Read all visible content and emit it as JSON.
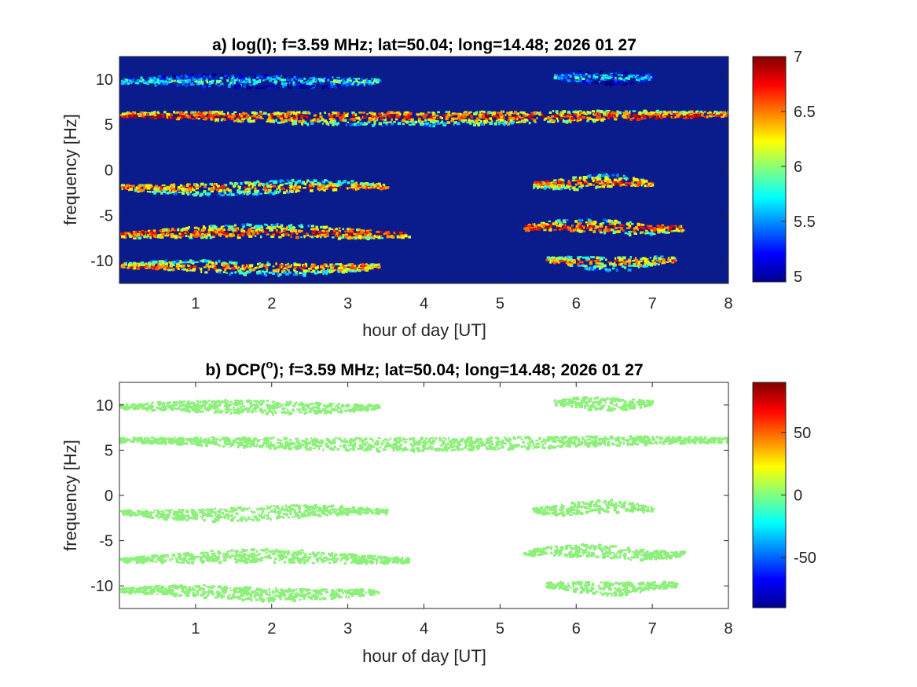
{
  "chart_data": [
    {
      "type": "heatmap",
      "title_prefix": "a) log(I); f=3.59 MHz;  lat=50.04; long=14.48; 2026 01 27",
      "xlabel": "hour of day [UT]",
      "ylabel": "frequency [Hz]",
      "xlim": [
        0,
        8
      ],
      "ylim": [
        -12.5,
        12.5
      ],
      "xticks": [
        "1",
        "2",
        "3",
        "4",
        "5",
        "6",
        "7",
        "8"
      ],
      "yticks": [
        "10",
        "5",
        "0",
        "-5",
        "-10"
      ],
      "colormap": "jet",
      "background_color": "#0a1c8c",
      "clim": [
        4.95,
        7
      ],
      "colorbar_ticks": [
        "7",
        "6.5",
        "6",
        "5.5",
        "5"
      ],
      "bands": [
        {
          "freq": 9.9,
          "x_start": 0.0,
          "x_end": 3.4,
          "intensity": 5.9
        },
        {
          "freq": 10.3,
          "x_start": 5.7,
          "x_end": 7.0,
          "intensity": 5.8
        },
        {
          "freq": 6.0,
          "x_start": 0.0,
          "x_end": 8.0,
          "intensity": 6.8
        },
        {
          "freq": -1.8,
          "x_start": 0.0,
          "x_end": 3.5,
          "intensity": 6.6
        },
        {
          "freq": -1.3,
          "x_start": 5.4,
          "x_end": 7.0,
          "intensity": 6.7
        },
        {
          "freq": -6.8,
          "x_start": 0.0,
          "x_end": 3.8,
          "intensity": 6.8
        },
        {
          "freq": -6.2,
          "x_start": 5.3,
          "x_end": 7.4,
          "intensity": 6.8
        },
        {
          "freq": -10.6,
          "x_start": 0.0,
          "x_end": 3.4,
          "intensity": 6.6
        },
        {
          "freq": -10.0,
          "x_start": 5.6,
          "x_end": 7.3,
          "intensity": 6.6
        }
      ]
    },
    {
      "type": "heatmap",
      "title_prefix": "b) DCP(",
      "title_superscript": "o",
      "title_suffix": ");  f=3.59 MHz;  lat=50.04; long=14.48; 2026 01 27",
      "xlabel": "hour of day [UT]",
      "ylabel": "frequency [Hz]",
      "xlim": [
        0,
        8
      ],
      "ylim": [
        -12.5,
        12.5
      ],
      "xticks": [
        "1",
        "2",
        "3",
        "4",
        "5",
        "6",
        "7",
        "8"
      ],
      "yticks": [
        "10",
        "5",
        "0",
        "-5",
        "-10"
      ],
      "colormap": "jet",
      "background_color": "#ffffff",
      "clim": [
        -90,
        90
      ],
      "colorbar_ticks": [
        "50",
        "0",
        "-50"
      ],
      "point_value": 10,
      "point_color": "#8cf07a",
      "bands": [
        {
          "freq": 9.9,
          "x_start": 0.0,
          "x_end": 3.4
        },
        {
          "freq": 10.3,
          "x_start": 5.7,
          "x_end": 7.0
        },
        {
          "freq": 6.0,
          "x_start": 0.0,
          "x_end": 8.0
        },
        {
          "freq": -1.8,
          "x_start": 0.0,
          "x_end": 3.5
        },
        {
          "freq": -1.3,
          "x_start": 5.4,
          "x_end": 7.0
        },
        {
          "freq": -6.8,
          "x_start": 0.0,
          "x_end": 3.8
        },
        {
          "freq": -6.2,
          "x_start": 5.3,
          "x_end": 7.4
        },
        {
          "freq": -10.6,
          "x_start": 0.0,
          "x_end": 3.4
        },
        {
          "freq": -10.0,
          "x_start": 5.6,
          "x_end": 7.3
        }
      ]
    }
  ]
}
